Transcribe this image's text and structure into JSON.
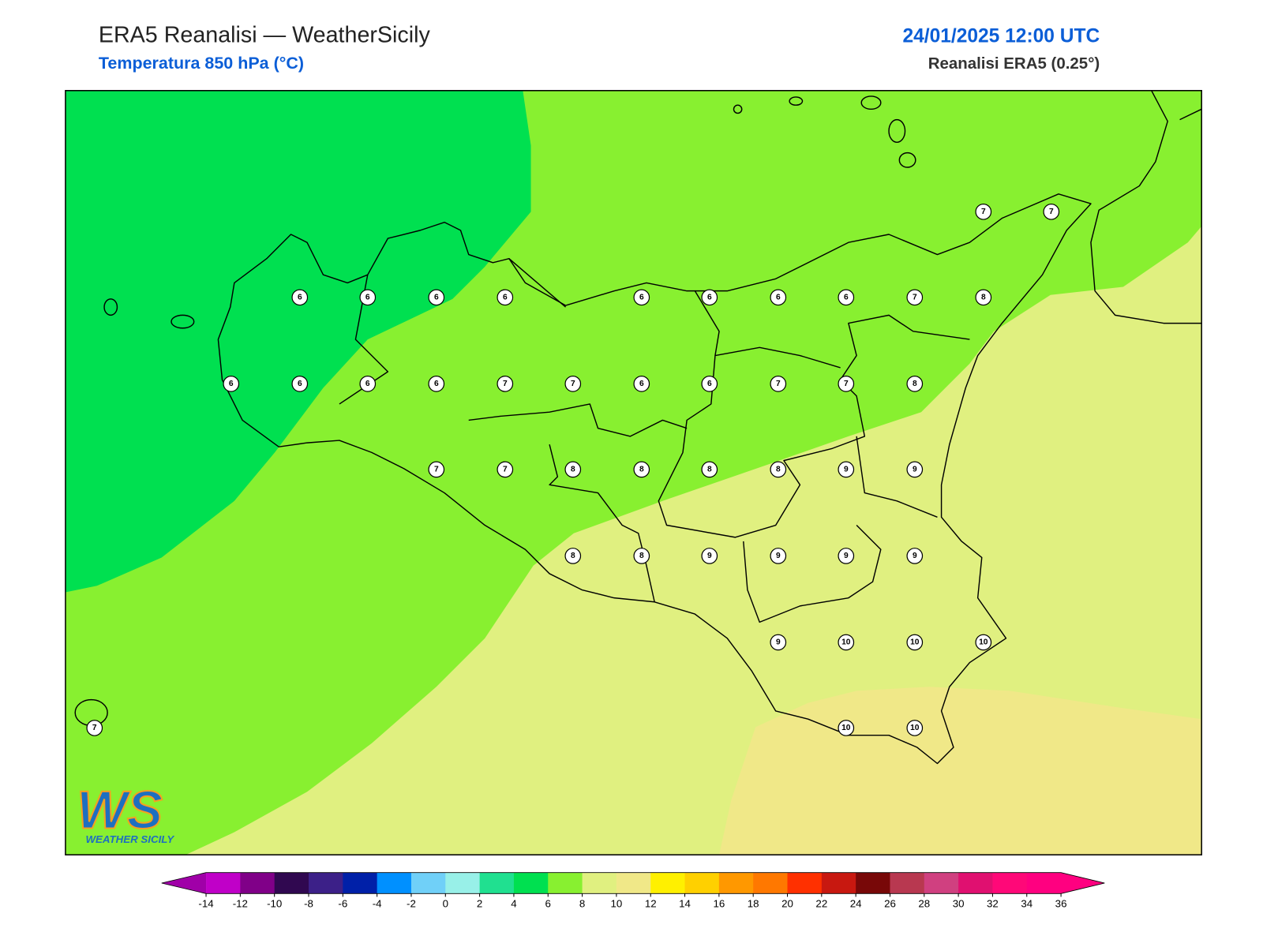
{
  "header": {
    "title": "ERA5 Reanalisi — WeatherSicily",
    "subtitle": "Temperatura 850 hPa (°C)",
    "datetime": "24/01/2025 12:00 UTC",
    "source": "Reanalisi ERA5 (0.25°)"
  },
  "stations": {
    "values": [
      7,
      7,
      6,
      6,
      6,
      6,
      6,
      6,
      6,
      6,
      7,
      8,
      6,
      6,
      6,
      6,
      7,
      7,
      6,
      6,
      7,
      7,
      8,
      7,
      7,
      8,
      8,
      8,
      8,
      9,
      9,
      8,
      8,
      9,
      9,
      9,
      9,
      9,
      10,
      10,
      10,
      7,
      10,
      10
    ]
  },
  "colorbar": {
    "ticks": [
      -14,
      -12,
      -10,
      -8,
      -6,
      -4,
      -2,
      0,
      2,
      4,
      6,
      8,
      10,
      12,
      14,
      16,
      18,
      20,
      22,
      24,
      26,
      28,
      30,
      32,
      34,
      36
    ],
    "colors": [
      "#a000a8",
      "#c000c8",
      "#800088",
      "#300850",
      "#3c2088",
      "#0020a8",
      "#0090ff",
      "#70d0f8",
      "#98f0e8",
      "#20e090",
      "#00e050",
      "#88f030",
      "#e0f080",
      "#f0e888",
      "#fff000",
      "#ffd000",
      "#ff9800",
      "#ff7800",
      "#ff3000",
      "#c81810",
      "#780808",
      "#b83850",
      "#d04080",
      "#e01070",
      "#ff0878",
      "#ff0080",
      "#ff0080"
    ]
  },
  "logo": {
    "mark": "WS",
    "name": "WEATHER SICILY"
  }
}
